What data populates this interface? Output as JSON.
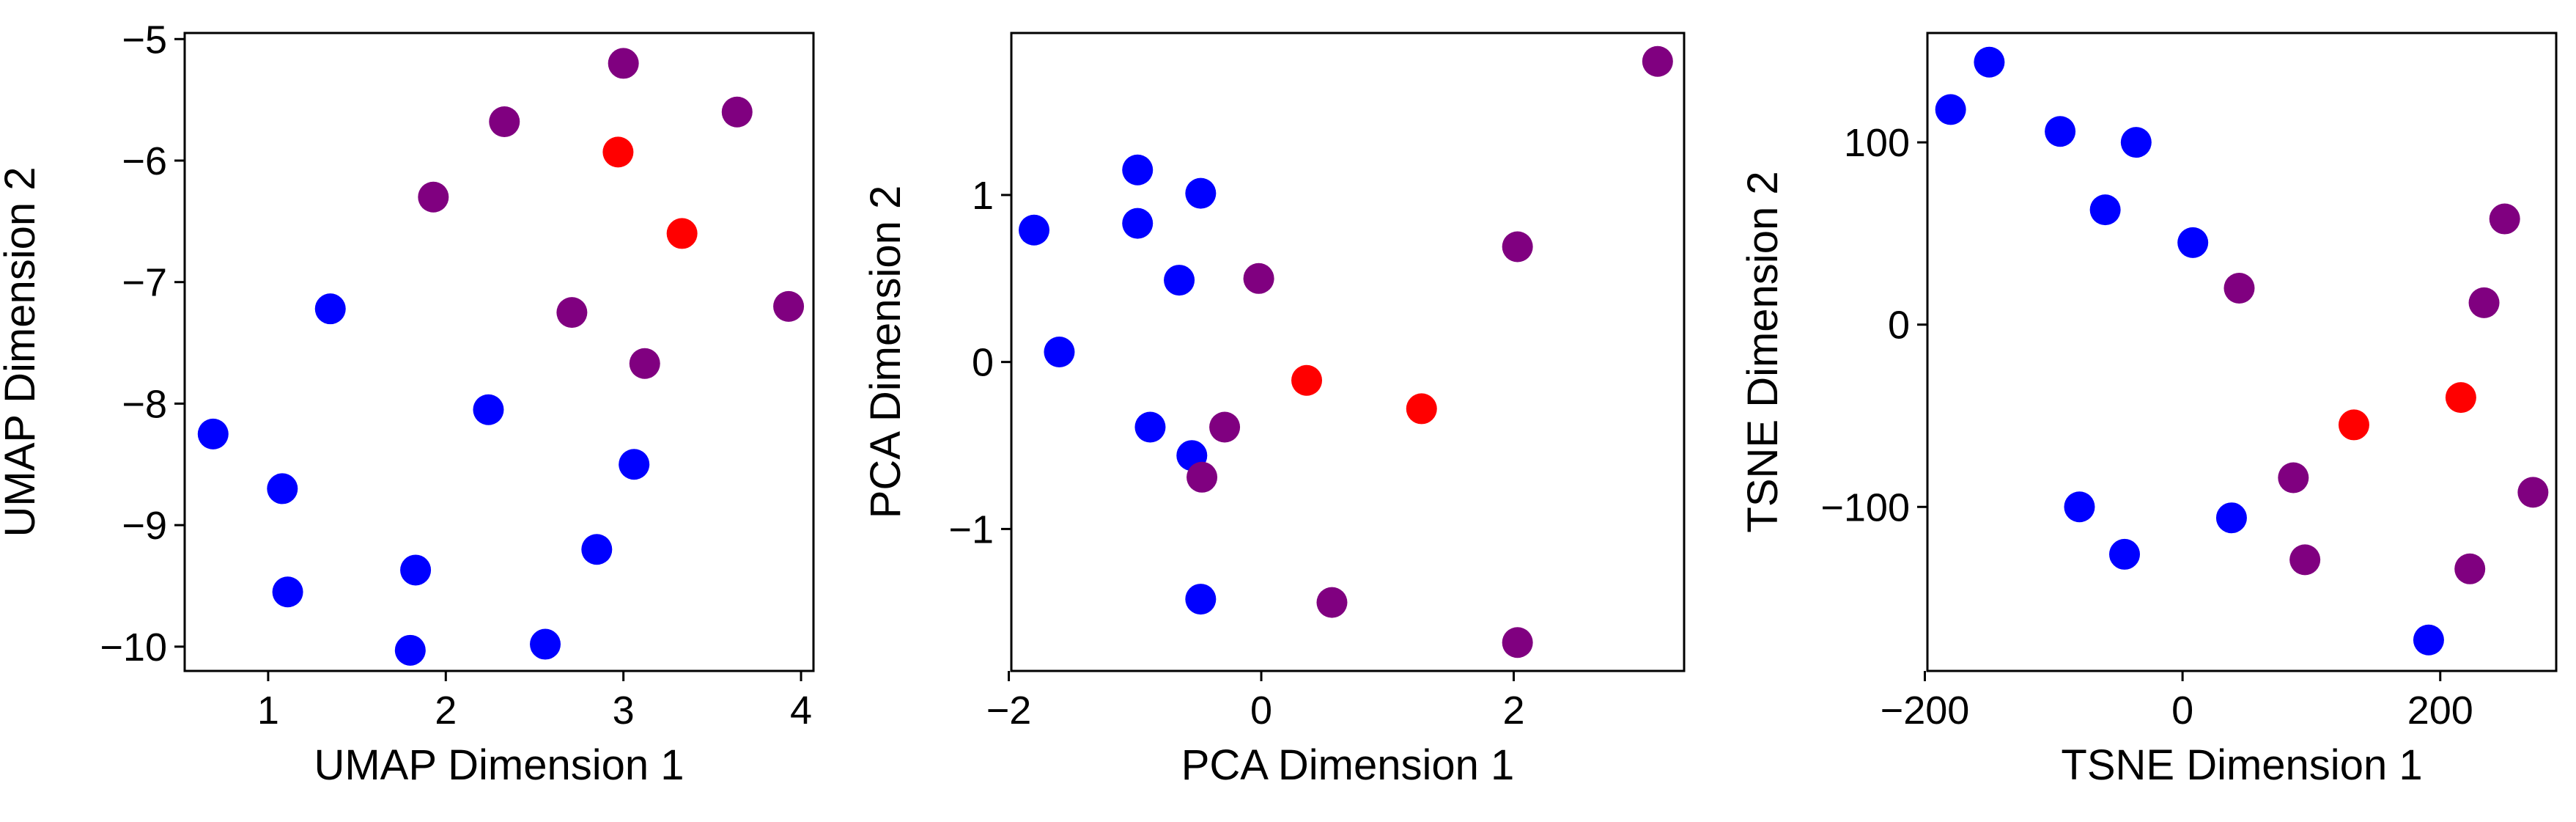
{
  "colors": {
    "blue": "#0000ff",
    "purple": "#800080",
    "red": "#ff0000"
  },
  "chart_data": [
    {
      "type": "scatter",
      "xlabel": "UMAP Dimension 1",
      "ylabel": "UMAP Dimension 2",
      "xlim": [
        0.53,
        4.07
      ],
      "ylim": [
        -10.2,
        -4.95
      ],
      "xticks": [
        1,
        2,
        3,
        4
      ],
      "yticks": [
        -10,
        -9,
        -8,
        -7,
        -6,
        -5
      ],
      "grid": false,
      "points": [
        {
          "x": 0.69,
          "y": -8.25,
          "color": "blue"
        },
        {
          "x": 1.08,
          "y": -8.7,
          "color": "blue"
        },
        {
          "x": 1.11,
          "y": -9.55,
          "color": "blue"
        },
        {
          "x": 1.35,
          "y": -7.22,
          "color": "blue"
        },
        {
          "x": 1.8,
          "y": -10.03,
          "color": "blue"
        },
        {
          "x": 1.83,
          "y": -9.37,
          "color": "blue"
        },
        {
          "x": 2.24,
          "y": -8.05,
          "color": "blue"
        },
        {
          "x": 2.56,
          "y": -9.98,
          "color": "blue"
        },
        {
          "x": 2.85,
          "y": -9.2,
          "color": "blue"
        },
        {
          "x": 3.06,
          "y": -8.5,
          "color": "blue"
        },
        {
          "x": 1.93,
          "y": -6.3,
          "color": "purple"
        },
        {
          "x": 2.33,
          "y": -5.68,
          "color": "purple"
        },
        {
          "x": 2.71,
          "y": -7.25,
          "color": "purple"
        },
        {
          "x": 3.0,
          "y": -5.2,
          "color": "purple"
        },
        {
          "x": 3.12,
          "y": -7.67,
          "color": "purple"
        },
        {
          "x": 3.64,
          "y": -5.6,
          "color": "purple"
        },
        {
          "x": 3.93,
          "y": -7.2,
          "color": "purple"
        },
        {
          "x": 2.97,
          "y": -5.93,
          "color": "red"
        },
        {
          "x": 3.33,
          "y": -6.6,
          "color": "red"
        }
      ]
    },
    {
      "type": "scatter",
      "xlabel": "PCA Dimension 1",
      "ylabel": "PCA Dimension 2",
      "xlim": [
        -1.98,
        3.35
      ],
      "ylim": [
        -1.85,
        1.97
      ],
      "xticks": [
        -2,
        0,
        2
      ],
      "yticks": [
        -1,
        0,
        1
      ],
      "grid": false,
      "points": [
        {
          "x": -1.8,
          "y": 0.79,
          "color": "blue"
        },
        {
          "x": -1.6,
          "y": 0.06,
          "color": "blue"
        },
        {
          "x": -0.98,
          "y": 1.15,
          "color": "blue"
        },
        {
          "x": -0.98,
          "y": 0.83,
          "color": "blue"
        },
        {
          "x": -0.48,
          "y": 1.01,
          "color": "blue"
        },
        {
          "x": -0.65,
          "y": 0.49,
          "color": "blue"
        },
        {
          "x": -0.88,
          "y": -0.39,
          "color": "blue"
        },
        {
          "x": -0.55,
          "y": -0.56,
          "color": "blue"
        },
        {
          "x": -0.48,
          "y": -1.42,
          "color": "blue"
        },
        {
          "x": -0.02,
          "y": 0.5,
          "color": "purple"
        },
        {
          "x": -0.29,
          "y": -0.39,
          "color": "purple"
        },
        {
          "x": -0.47,
          "y": -0.69,
          "color": "purple"
        },
        {
          "x": 0.56,
          "y": -1.44,
          "color": "purple"
        },
        {
          "x": 2.03,
          "y": 0.69,
          "color": "purple"
        },
        {
          "x": 2.03,
          "y": -1.68,
          "color": "purple"
        },
        {
          "x": 3.14,
          "y": 1.8,
          "color": "purple"
        },
        {
          "x": 0.36,
          "y": -0.11,
          "color": "red"
        },
        {
          "x": 1.27,
          "y": -0.28,
          "color": "red"
        }
      ]
    },
    {
      "type": "scatter",
      "xlabel": "TSNE Dimension 1",
      "ylabel": "TSNE Dimension 2",
      "xlim": [
        -198,
        290
      ],
      "ylim": [
        -190,
        160
      ],
      "xticks": [
        -200,
        0,
        200
      ],
      "yticks": [
        -100,
        0,
        100
      ],
      "grid": false,
      "points": [
        {
          "x": -180,
          "y": 118,
          "color": "blue"
        },
        {
          "x": -150,
          "y": 144,
          "color": "blue"
        },
        {
          "x": -95,
          "y": 106,
          "color": "blue"
        },
        {
          "x": -60,
          "y": 63,
          "color": "blue"
        },
        {
          "x": -36,
          "y": 100,
          "color": "blue"
        },
        {
          "x": 8,
          "y": 45,
          "color": "blue"
        },
        {
          "x": -80,
          "y": -100,
          "color": "blue"
        },
        {
          "x": -45,
          "y": -126,
          "color": "blue"
        },
        {
          "x": 38,
          "y": -106,
          "color": "blue"
        },
        {
          "x": 191,
          "y": -173,
          "color": "blue"
        },
        {
          "x": 44,
          "y": 20,
          "color": "purple"
        },
        {
          "x": 86,
          "y": -84,
          "color": "purple"
        },
        {
          "x": 95,
          "y": -129,
          "color": "purple"
        },
        {
          "x": 223,
          "y": -134,
          "color": "purple"
        },
        {
          "x": 234,
          "y": 12,
          "color": "purple"
        },
        {
          "x": 250,
          "y": 58,
          "color": "purple"
        },
        {
          "x": 272,
          "y": -92,
          "color": "purple"
        },
        {
          "x": 133,
          "y": -55,
          "color": "red"
        },
        {
          "x": 216,
          "y": -40,
          "color": "red"
        }
      ]
    }
  ]
}
